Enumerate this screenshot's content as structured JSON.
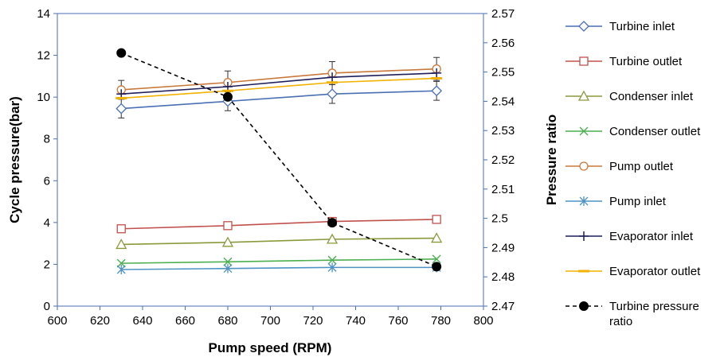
{
  "chart_data": {
    "type": "line",
    "xlabel": "Pump speed (RPM)",
    "ylabel": "Cycle  pressure(bar)",
    "y2label": "Pressure ratio",
    "xlim": [
      600,
      800
    ],
    "ylim": [
      0,
      14
    ],
    "y2lim": [
      2.47,
      2.57
    ],
    "x_ticks": [
      "600",
      "620",
      "640",
      "660",
      "680",
      "700",
      "720",
      "740",
      "760",
      "780",
      "800"
    ],
    "y_ticks": [
      "0",
      "2",
      "4",
      "6",
      "8",
      "10",
      "12",
      "14"
    ],
    "y2_ticks": [
      "2.47",
      "2.48",
      "2.49",
      "2.5",
      "2.51",
      "2.52",
      "2.53",
      "2.54",
      "2.55",
      "2.56",
      "2.57"
    ],
    "grid": false,
    "legend_position": "right",
    "x": [
      630,
      680,
      729,
      778
    ],
    "series": [
      {
        "name": "Turbine inlet",
        "color": "#4a6fb5",
        "marker": "diamond",
        "axis": "left",
        "values": [
          9.45,
          9.8,
          10.15,
          10.3
        ],
        "error": [
          0.45,
          0.45,
          0.45,
          0.45
        ]
      },
      {
        "name": "Turbine outlet",
        "color": "#c0504d",
        "marker": "square",
        "axis": "left",
        "values": [
          3.7,
          3.85,
          4.05,
          4.15
        ]
      },
      {
        "name": "Condenser inlet",
        "color": "#8a9a3b",
        "marker": "triangle",
        "axis": "left",
        "values": [
          2.95,
          3.05,
          3.2,
          3.25
        ]
      },
      {
        "name": "Condenser outlet",
        "color": "#4caf50",
        "marker": "x",
        "axis": "left",
        "values": [
          2.05,
          2.12,
          2.2,
          2.25
        ]
      },
      {
        "name": "Pump outlet",
        "color": "#c8783a",
        "marker": "circle",
        "axis": "left",
        "values": [
          10.35,
          10.7,
          11.15,
          11.35
        ],
        "error": [
          0.45,
          0.55,
          0.55,
          0.55
        ]
      },
      {
        "name": "Pump inlet",
        "color": "#4f93c4",
        "marker": "star",
        "axis": "left",
        "values": [
          1.75,
          1.8,
          1.85,
          1.85
        ]
      },
      {
        "name": "Evaporator inlet",
        "color": "#1f1f5a",
        "marker": "plus",
        "axis": "left",
        "values": [
          10.15,
          10.5,
          10.95,
          11.15
        ]
      },
      {
        "name": "Evaporator outlet",
        "color": "#f2b200",
        "marker": "dash",
        "axis": "left",
        "values": [
          9.95,
          10.3,
          10.7,
          10.9
        ]
      },
      {
        "name": "Turbine pressure ratio",
        "color": "#000000",
        "marker": "dot",
        "axis": "right",
        "dashed": true,
        "values": [
          2.5565,
          2.5415,
          2.4985,
          2.4835
        ]
      }
    ]
  }
}
